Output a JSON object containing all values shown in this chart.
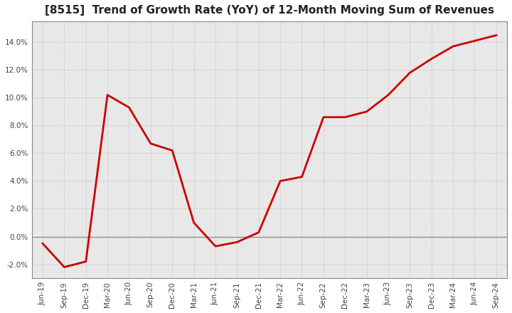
{
  "title": "[8515]  Trend of Growth Rate (YoY) of 12-Month Moving Sum of Revenues",
  "title_fontsize": 11,
  "line_color": "#cc0000",
  "background_color": "#ffffff",
  "plot_bg_color": "#e8e8e8",
  "grid_color": "#aaaaaa",
  "ylim": [
    -0.03,
    0.155
  ],
  "yticks": [
    -0.02,
    0.0,
    0.02,
    0.04,
    0.06,
    0.08,
    0.1,
    0.12,
    0.14
  ],
  "x_labels": [
    "Jun-19",
    "Sep-19",
    "Dec-19",
    "Mar-20",
    "Jun-20",
    "Sep-20",
    "Dec-20",
    "Mar-21",
    "Jun-21",
    "Sep-21",
    "Dec-21",
    "Mar-22",
    "Jun-22",
    "Sep-22",
    "Dec-22",
    "Mar-23",
    "Jun-23",
    "Sep-23",
    "Dec-23",
    "Mar-24",
    "Jun-24",
    "Sep-24"
  ],
  "y_values": [
    -0.005,
    -0.022,
    -0.018,
    0.102,
    0.093,
    0.067,
    0.062,
    0.01,
    -0.007,
    -0.004,
    0.003,
    0.04,
    0.043,
    0.086,
    0.086,
    0.09,
    0.102,
    0.118,
    0.128,
    0.137,
    0.141,
    0.145
  ]
}
